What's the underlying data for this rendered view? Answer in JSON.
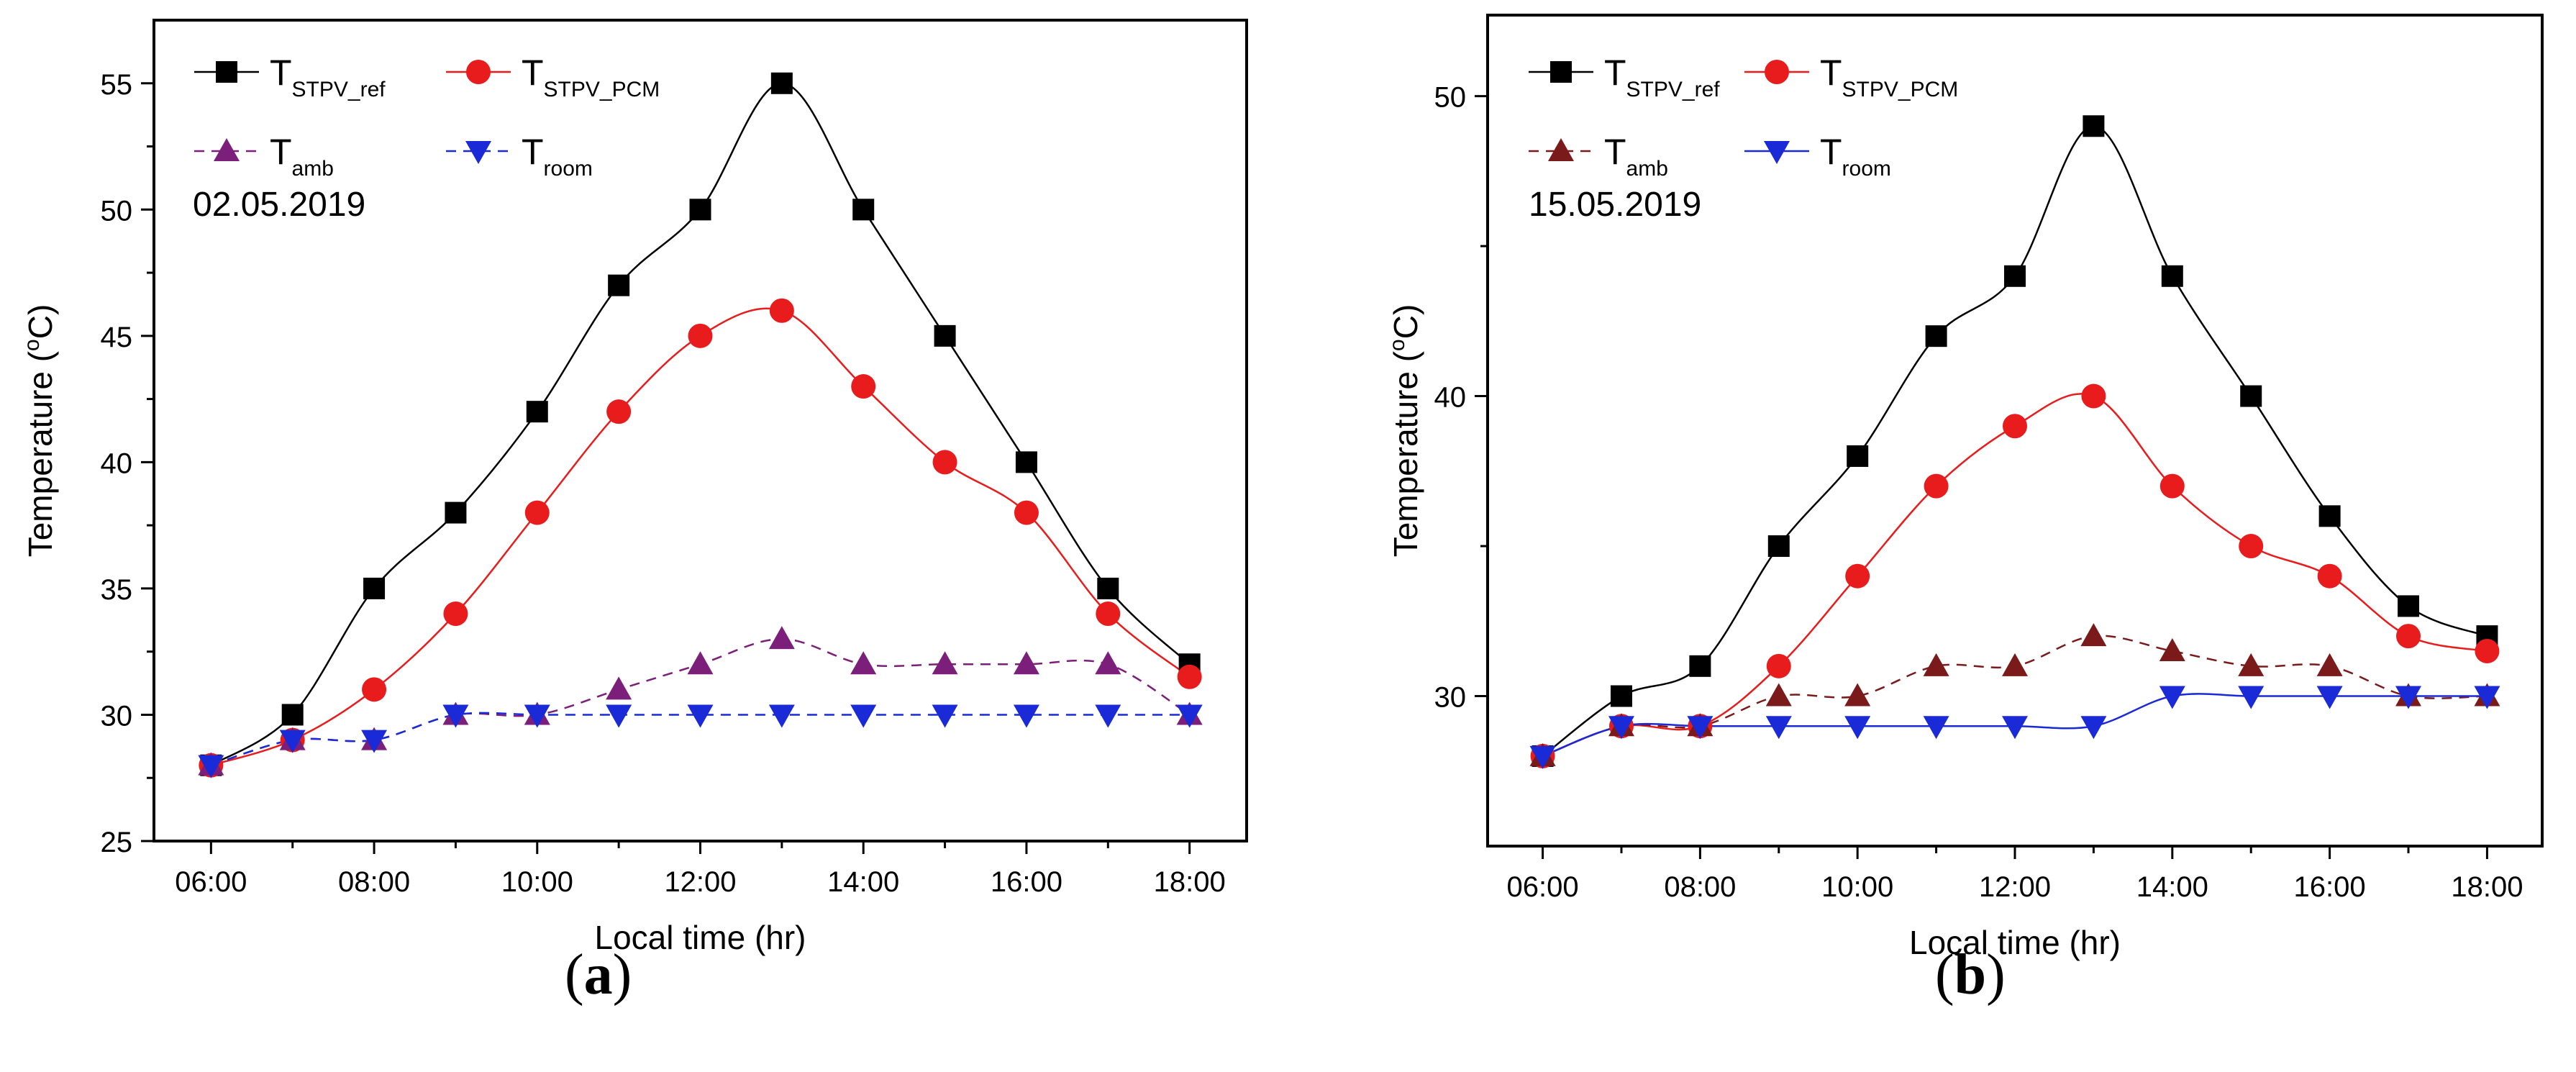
{
  "chart_data": [
    {
      "type": "line",
      "panel": "(a)",
      "panel_letter": "a",
      "date_annotation": "02.05.2019",
      "xlabel": "Local time (hr)",
      "ylabel_prefix": "Temperature (",
      "ylabel_sup": "o",
      "ylabel_suffix": "C)",
      "x": [
        6,
        7,
        8,
        9,
        10,
        11,
        12,
        13,
        14,
        15,
        16,
        17,
        18
      ],
      "xlim": [
        5.3,
        18.7
      ],
      "xticks": [
        6,
        8,
        10,
        12,
        14,
        16,
        18
      ],
      "xtick_labels": [
        "06:00",
        "08:00",
        "10:00",
        "12:00",
        "14:00",
        "16:00",
        "18:00"
      ],
      "ylim": [
        25,
        57.5
      ],
      "yticks": [
        25,
        30,
        35,
        40,
        45,
        50,
        55
      ],
      "ytick_labels": [
        "25",
        "30",
        "35",
        "40",
        "45",
        "50",
        "55"
      ],
      "series": [
        {
          "name": "T",
          "sub": "STPV_ref",
          "color": "#000000",
          "marker": "square",
          "dash": "",
          "values": [
            28,
            30,
            35,
            38,
            42,
            47,
            50,
            55,
            50,
            45,
            40,
            35,
            32
          ]
        },
        {
          "name": "T",
          "sub": "STPV_PCM",
          "color": "#e81c1c",
          "marker": "circle",
          "dash": "",
          "values": [
            28,
            29,
            31,
            34,
            38,
            42,
            45,
            46,
            43,
            40,
            38,
            34,
            31.5
          ]
        },
        {
          "name": "T",
          "sub": "amb",
          "color": "#7b1f7b",
          "marker": "triangle-up",
          "dash": "14 10",
          "values": [
            28,
            29,
            29,
            30,
            30,
            31,
            32,
            33,
            32,
            32,
            32,
            32,
            30
          ]
        },
        {
          "name": "T",
          "sub": "room",
          "color": "#1a2ad6",
          "marker": "triangle-down",
          "dash": "14 10",
          "values": [
            28,
            29,
            29,
            30,
            30,
            30,
            30,
            30,
            30,
            30,
            30,
            30,
            30
          ]
        }
      ]
    },
    {
      "type": "line",
      "panel": "(b)",
      "panel_letter": "b",
      "date_annotation": "15.05.2019",
      "xlabel": "Local time (hr)",
      "ylabel_prefix": "Temperature (",
      "ylabel_sup": "o",
      "ylabel_suffix": "C)",
      "x": [
        6,
        7,
        8,
        9,
        10,
        11,
        12,
        13,
        14,
        15,
        16,
        17,
        18
      ],
      "xlim": [
        5.3,
        18.7
      ],
      "xticks": [
        6,
        8,
        10,
        12,
        14,
        16,
        18
      ],
      "xtick_labels": [
        "06:00",
        "08:00",
        "10:00",
        "12:00",
        "14:00",
        "16:00",
        "18:00"
      ],
      "ylim": [
        25,
        52.7
      ],
      "yticks": [
        30,
        40,
        50
      ],
      "ytick_labels": [
        "30",
        "40",
        "50"
      ],
      "series": [
        {
          "name": "T",
          "sub": "STPV_ref",
          "color": "#000000",
          "marker": "square",
          "dash": "",
          "values": [
            28,
            30,
            31,
            35,
            38,
            42,
            44,
            49,
            44,
            40,
            36,
            33,
            32
          ]
        },
        {
          "name": "T",
          "sub": "STPV_PCM",
          "color": "#e81c1c",
          "marker": "circle",
          "dash": "",
          "values": [
            28,
            29,
            29,
            31,
            34,
            37,
            39,
            40,
            37,
            35,
            34,
            32,
            31.5
          ]
        },
        {
          "name": "T",
          "sub": "amb",
          "color": "#7a1a1a",
          "marker": "triangle-up",
          "dash": "14 10",
          "values": [
            28,
            29,
            29,
            30,
            30,
            31,
            31,
            32,
            31.5,
            31,
            31,
            30,
            30
          ]
        },
        {
          "name": "T",
          "sub": "room",
          "color": "#1a2ad6",
          "marker": "triangle-down",
          "dash": "",
          "values": [
            28,
            29,
            29,
            29,
            29,
            29,
            29,
            29,
            30,
            30,
            30,
            30,
            30
          ]
        }
      ]
    }
  ]
}
